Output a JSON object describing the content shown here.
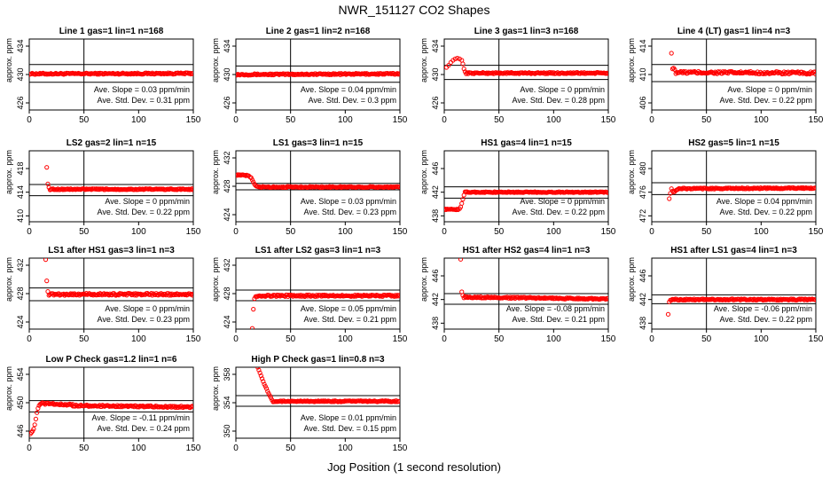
{
  "figure": {
    "title": "NWR_151127  CO2 Shapes",
    "xlabel": "Jog Position (1 second resolution)"
  },
  "style": {
    "point_color": "#ff0000",
    "axis_color": "#000000"
  },
  "chart_data": [
    {
      "type": "scatter",
      "title": "Line 1 gas=1 lin=1 n=168",
      "xlabel": "",
      "ylabel": "approx. ppm",
      "xlim": [
        0,
        150
      ],
      "ylim": [
        425,
        435
      ],
      "xticks": [
        0,
        50,
        100,
        150
      ],
      "yticks": [
        426,
        430,
        434
      ],
      "hlines": [
        431.4,
        428.9
      ],
      "vline": 50,
      "slope_text": "Ave. Slope = 0.03  ppm/min",
      "sd_text": "Ave. Std. Dev. = 0.31  ppm",
      "segments": [
        {
          "x0": 0,
          "x1": 150,
          "y0": 430.1,
          "y1": 430.15,
          "noise": 0.1
        }
      ],
      "points": []
    },
    {
      "type": "scatter",
      "title": "Line 2 gas=1 lin=2 n=168",
      "xlabel": "",
      "ylabel": "approx. ppm",
      "xlim": [
        0,
        150
      ],
      "ylim": [
        425,
        435
      ],
      "xticks": [
        0,
        50,
        100,
        150
      ],
      "yticks": [
        426,
        430,
        434
      ],
      "hlines": [
        431.2,
        428.9
      ],
      "vline": 50,
      "slope_text": "Ave. Slope = 0.04  ppm/min",
      "sd_text": "Ave. Std. Dev. = 0.3  ppm",
      "segments": [
        {
          "x0": 0,
          "x1": 150,
          "y0": 430.0,
          "y1": 430.1,
          "noise": 0.1
        }
      ],
      "points": []
    },
    {
      "type": "scatter",
      "title": "Line 3 gas=1 lin=3 n=168",
      "xlabel": "",
      "ylabel": "approx. ppm",
      "xlim": [
        0,
        150
      ],
      "ylim": [
        425,
        435
      ],
      "xticks": [
        0,
        50,
        100,
        150
      ],
      "yticks": [
        426,
        430,
        434
      ],
      "hlines": [
        431.3,
        429.3
      ],
      "vline": 50,
      "slope_text": "Ave. Slope = 0  ppm/min",
      "sd_text": "Ave. Std. Dev. = 0.28  ppm",
      "segments": [
        {
          "x0": 20,
          "x1": 150,
          "y0": 430.2,
          "y1": 430.2,
          "noise": 0.1
        }
      ],
      "points": [
        [
          2,
          431.0
        ],
        [
          4,
          431.3
        ],
        [
          6,
          431.7
        ],
        [
          8,
          432.0
        ],
        [
          10,
          432.2
        ],
        [
          12,
          432.3
        ],
        [
          14,
          432.2
        ],
        [
          16,
          432.0
        ],
        [
          17,
          431.5
        ],
        [
          18,
          430.8
        ],
        [
          19,
          430.4
        ]
      ]
    },
    {
      "type": "scatter",
      "title": "Line 4 (LT) gas=1 lin=4 n=3",
      "xlabel": "",
      "ylabel": "approx. ppm",
      "xlim": [
        0,
        150
      ],
      "ylim": [
        405,
        415
      ],
      "xticks": [
        0,
        50,
        100,
        150
      ],
      "yticks": [
        406,
        410,
        414
      ],
      "hlines": [
        411.4,
        409.0
      ],
      "vline": 50,
      "slope_text": "Ave. Slope = 0  ppm/min",
      "sd_text": "Ave. Std. Dev. = 0.22  ppm",
      "segments": [
        {
          "x0": 22,
          "x1": 150,
          "y0": 410.3,
          "y1": 410.2,
          "noise": 0.18
        }
      ],
      "points": [
        [
          18,
          413.0
        ],
        [
          19,
          410.8
        ],
        [
          20,
          410.9
        ],
        [
          21,
          410.7
        ]
      ]
    },
    {
      "type": "scatter",
      "title": "LS2 gas=2 lin=1 n=15",
      "xlabel": "",
      "ylabel": "approx. ppm",
      "xlim": [
        0,
        150
      ],
      "ylim": [
        409,
        421
      ],
      "xticks": [
        0,
        50,
        100,
        150
      ],
      "yticks": [
        410,
        414,
        418
      ],
      "hlines": [
        415.3,
        413.4
      ],
      "vline": 50,
      "slope_text": "Ave. Slope = 0  ppm/min",
      "sd_text": "Ave. Std. Dev. = 0.22  ppm",
      "segments": [
        {
          "x0": 19,
          "x1": 150,
          "y0": 414.5,
          "y1": 414.5,
          "noise": 0.1
        }
      ],
      "points": [
        [
          16,
          418.2
        ],
        [
          17,
          415.4
        ],
        [
          18,
          414.8
        ]
      ]
    },
    {
      "type": "scatter",
      "title": "LS1 gas=3 lin=1 n=15",
      "xlabel": "",
      "ylabel": "approx. ppm",
      "xlim": [
        0,
        150
      ],
      "ylim": [
        423,
        433
      ],
      "xticks": [
        0,
        50,
        100,
        150
      ],
      "yticks": [
        424,
        428,
        432
      ],
      "hlines": [
        428.4,
        427.5
      ],
      "vline": 50,
      "slope_text": "Ave. Slope = 0.03  ppm/min",
      "sd_text": "Ave. Std. Dev. = 0.23  ppm",
      "segments": [
        {
          "x0": 0,
          "x1": 12,
          "y0": 429.6,
          "y1": 429.5,
          "noise": 0.08
        },
        {
          "x0": 20,
          "x1": 150,
          "y0": 427.9,
          "y1": 427.9,
          "noise": 0.08
        }
      ],
      "points": [
        [
          13,
          429.3
        ],
        [
          14,
          429.2
        ],
        [
          15,
          428.9
        ],
        [
          16,
          428.6
        ],
        [
          17,
          428.3
        ],
        [
          18,
          428.1
        ],
        [
          19,
          428.0
        ]
      ]
    },
    {
      "type": "scatter",
      "title": "HS1 gas=4 lin=1 n=15",
      "xlabel": "",
      "ylabel": "approx. ppm",
      "xlim": [
        0,
        150
      ],
      "ylim": [
        437,
        449
      ],
      "xticks": [
        0,
        50,
        100,
        150
      ],
      "yticks": [
        438,
        442,
        446
      ],
      "hlines": [
        442.9,
        441.0
      ],
      "vline": 50,
      "slope_text": "Ave. Slope = 0  ppm/min",
      "sd_text": "Ave. Std. Dev. = 0.22  ppm",
      "segments": [
        {
          "x0": 0,
          "x1": 13,
          "y0": 439.1,
          "y1": 439.1,
          "noise": 0.08
        },
        {
          "x0": 19,
          "x1": 150,
          "y0": 442.0,
          "y1": 442.0,
          "noise": 0.08
        }
      ],
      "points": [
        [
          14,
          439.2
        ],
        [
          15,
          439.5
        ],
        [
          16,
          440.1
        ],
        [
          17,
          440.8
        ],
        [
          18,
          441.5
        ]
      ]
    },
    {
      "type": "scatter",
      "title": "HS2 gas=5 lin=1 n=15",
      "xlabel": "",
      "ylabel": "approx. ppm",
      "xlim": [
        0,
        150
      ],
      "ylim": [
        471,
        483
      ],
      "xticks": [
        0,
        50,
        100,
        150
      ],
      "yticks": [
        472,
        476,
        480
      ],
      "hlines": [
        477.6,
        475.6
      ],
      "vline": 50,
      "slope_text": "Ave. Slope = 0.04  ppm/min",
      "sd_text": "Ave. Std. Dev. = 0.22  ppm",
      "segments": [
        {
          "x0": 24,
          "x1": 150,
          "y0": 476.6,
          "y1": 476.7,
          "noise": 0.1
        }
      ],
      "points": [
        [
          16,
          474.9
        ],
        [
          17,
          475.8
        ],
        [
          18,
          476.6
        ],
        [
          19,
          476.2
        ],
        [
          20,
          476.0
        ],
        [
          21,
          476.1
        ],
        [
          22,
          476.3
        ],
        [
          23,
          476.4
        ]
      ]
    },
    {
      "type": "scatter",
      "title": "LS1 after HS1 gas=3 lin=1 n=3",
      "xlabel": "",
      "ylabel": "approx. ppm",
      "xlim": [
        0,
        150
      ],
      "ylim": [
        423,
        433
      ],
      "xticks": [
        0,
        50,
        100,
        150
      ],
      "yticks": [
        424,
        428,
        432
      ],
      "hlines": [
        428.8,
        427.0
      ],
      "vline": 50,
      "slope_text": "Ave. Slope = 0  ppm/min",
      "sd_text": "Ave. Std. Dev. = 0.23  ppm",
      "segments": [
        {
          "x0": 18,
          "x1": 150,
          "y0": 427.9,
          "y1": 427.9,
          "noise": 0.15
        }
      ],
      "points": [
        [
          15,
          432.8
        ],
        [
          16,
          429.8
        ],
        [
          17,
          428.3
        ]
      ]
    },
    {
      "type": "scatter",
      "title": "LS1 after LS2 gas=3 lin=1 n=3",
      "xlabel": "",
      "ylabel": "approx. ppm",
      "xlim": [
        0,
        150
      ],
      "ylim": [
        423,
        433
      ],
      "xticks": [
        0,
        50,
        100,
        150
      ],
      "yticks": [
        424,
        428,
        432
      ],
      "hlines": [
        428.5,
        427.0
      ],
      "vline": 50,
      "slope_text": "Ave. Slope = 0.05  ppm/min",
      "sd_text": "Ave. Std. Dev. = 0.21  ppm",
      "segments": [
        {
          "x0": 18,
          "x1": 150,
          "y0": 427.7,
          "y1": 427.7,
          "noise": 0.12
        }
      ],
      "points": [
        [
          15,
          423.1
        ],
        [
          16,
          425.8
        ],
        [
          17,
          427.3
        ]
      ]
    },
    {
      "type": "scatter",
      "title": "HS1 after HS2 gas=4 lin=1 n=3",
      "xlabel": "",
      "ylabel": "approx. ppm",
      "xlim": [
        0,
        150
      ],
      "ylim": [
        437,
        449
      ],
      "xticks": [
        0,
        50,
        100,
        150
      ],
      "yticks": [
        438,
        442,
        446
      ],
      "hlines": [
        443.0,
        441.2
      ],
      "vline": 50,
      "slope_text": "Ave. Slope = -0.08  ppm/min",
      "sd_text": "Ave. Std. Dev. = 0.21  ppm",
      "segments": [
        {
          "x0": 18,
          "x1": 150,
          "y0": 442.4,
          "y1": 442.1,
          "noise": 0.12
        }
      ],
      "points": [
        [
          15,
          448.8
        ],
        [
          16,
          443.3
        ],
        [
          17,
          442.7
        ]
      ]
    },
    {
      "type": "scatter",
      "title": "HS1 after LS1 gas=4 lin=1 n=3",
      "xlabel": "",
      "ylabel": "approx. ppm",
      "xlim": [
        0,
        150
      ],
      "ylim": [
        437,
        449
      ],
      "xticks": [
        0,
        50,
        100,
        150
      ],
      "yticks": [
        438,
        442,
        446
      ],
      "hlines": [
        442.8,
        441.3
      ],
      "vline": 50,
      "slope_text": "Ave. Slope = -0.06  ppm/min",
      "sd_text": "Ave. Std. Dev. = 0.22  ppm",
      "segments": [
        {
          "x0": 18,
          "x1": 150,
          "y0": 442.0,
          "y1": 442.0,
          "noise": 0.12
        }
      ],
      "points": [
        [
          15,
          439.5
        ],
        [
          16,
          441.6
        ],
        [
          17,
          441.9
        ]
      ]
    },
    {
      "type": "scatter",
      "title": "Low P Check gas=1.2 lin=1 n=6",
      "xlabel": "",
      "ylabel": "approx. ppm",
      "xlim": [
        0,
        150
      ],
      "ylim": [
        445,
        455
      ],
      "xticks": [
        0,
        50,
        100,
        150
      ],
      "yticks": [
        446,
        450,
        454
      ],
      "hlines": [
        450.3,
        448.7
      ],
      "vline": 50,
      "slope_text": "Ave. Slope = -0.11  ppm/min",
      "sd_text": "Ave. Std. Dev. = 0.24  ppm",
      "segments": [
        {
          "x0": 10,
          "x1": 40,
          "y0": 449.9,
          "y1": 449.7,
          "noise": 0.12
        },
        {
          "x0": 40,
          "x1": 150,
          "y0": 449.6,
          "y1": 449.4,
          "noise": 0.12
        }
      ],
      "points": [
        [
          1,
          445.6
        ],
        [
          2,
          445.8
        ],
        [
          3,
          446.0
        ],
        [
          4,
          446.3
        ],
        [
          5,
          446.9
        ],
        [
          6,
          447.7
        ],
        [
          7,
          448.6
        ],
        [
          8,
          449.2
        ],
        [
          9,
          449.6
        ]
      ]
    },
    {
      "type": "scatter",
      "title": "High P Check gas=1 lin=0.8 n=3",
      "xlabel": "",
      "ylabel": "approx. ppm",
      "xlim": [
        0,
        150
      ],
      "ylim": [
        349,
        359
      ],
      "xticks": [
        0,
        50,
        100,
        150
      ],
      "yticks": [
        350,
        354,
        358
      ],
      "hlines": [
        355.0,
        353.5
      ],
      "vline": 50,
      "slope_text": "Ave. Slope = 0.01  ppm/min",
      "sd_text": "Ave. Std. Dev. = 0.15  ppm",
      "segments": [
        {
          "x0": 34,
          "x1": 150,
          "y0": 354.2,
          "y1": 354.2,
          "noise": 0.08
        }
      ],
      "points": [
        [
          20,
          359.0
        ],
        [
          21,
          358.6
        ],
        [
          22,
          358.2
        ],
        [
          23,
          357.8
        ],
        [
          24,
          357.4
        ],
        [
          25,
          357.0
        ],
        [
          26,
          356.6
        ],
        [
          27,
          356.3
        ],
        [
          28,
          356.0
        ],
        [
          29,
          355.6
        ],
        [
          30,
          355.3
        ],
        [
          31,
          355.0
        ],
        [
          32,
          354.7
        ],
        [
          33,
          354.4
        ]
      ]
    }
  ]
}
